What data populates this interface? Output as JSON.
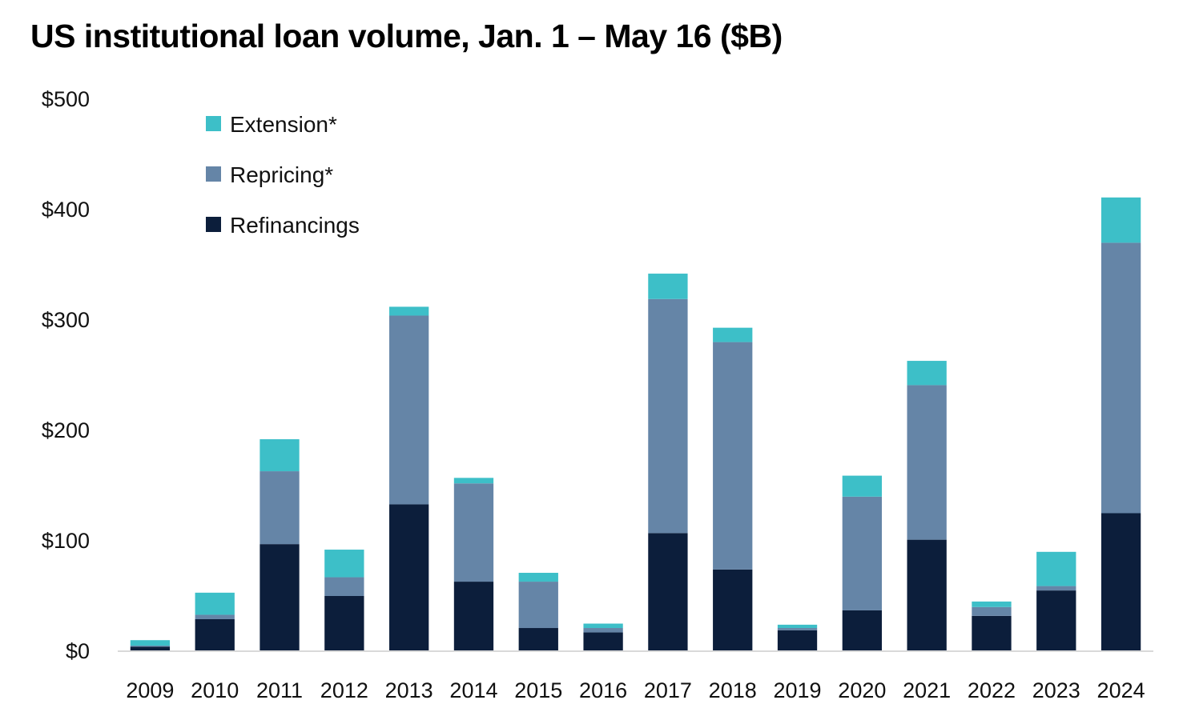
{
  "chart_data": {
    "type": "bar",
    "stacked": true,
    "title": "US institutional loan volume, Jan. 1 – May 16 ($B)",
    "xlabel": "",
    "ylabel": "",
    "categories": [
      "2009",
      "2010",
      "2011",
      "2012",
      "2013",
      "2014",
      "2015",
      "2016",
      "2017",
      "2018",
      "2019",
      "2020",
      "2021",
      "2022",
      "2023",
      "2024"
    ],
    "series": [
      {
        "name": "Refinancings",
        "color": "#0c1e3b",
        "values": [
          4,
          29,
          97,
          50,
          133,
          63,
          21,
          17,
          107,
          74,
          19,
          37,
          101,
          32,
          55,
          125
        ]
      },
      {
        "name": "Repricing*",
        "color": "#6585a7",
        "values": [
          1,
          4,
          66,
          17,
          171,
          89,
          42,
          4,
          212,
          206,
          2,
          103,
          140,
          8,
          4,
          245
        ]
      },
      {
        "name": "Extension*",
        "color": "#3dbfc8",
        "values": [
          5,
          20,
          29,
          25,
          8,
          5,
          8,
          4,
          23,
          13,
          3,
          19,
          22,
          5,
          31,
          41
        ]
      }
    ],
    "legend_order": [
      "Extension*",
      "Repricing*",
      "Refinancings"
    ],
    "legend_position": "top-left",
    "ylim": [
      0,
      500
    ],
    "yticks": [
      0,
      100,
      200,
      300,
      400,
      500
    ],
    "ytick_labels": [
      "$0",
      "$100",
      "$200",
      "$300",
      "$400",
      "$500"
    ],
    "grid": false
  }
}
